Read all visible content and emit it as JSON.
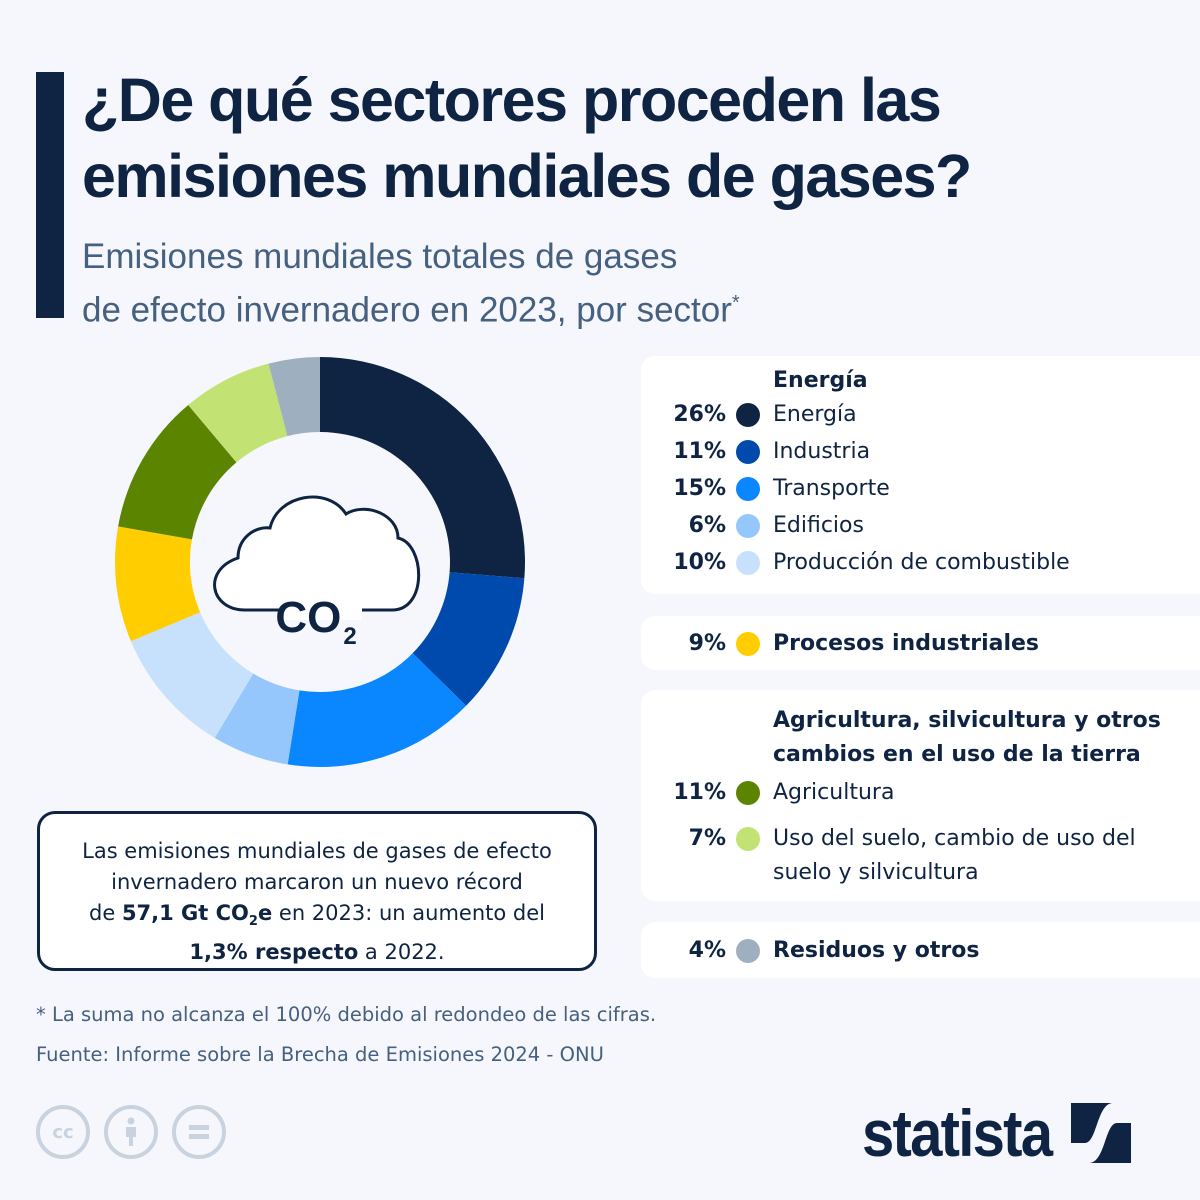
{
  "header": {
    "title_line1": "¿De qué sectores proceden las",
    "title_line2": "emisiones mundiales de gases?",
    "subtitle_line1": "Emisiones mundiales totales de gases",
    "subtitle_line2": "de efecto invernadero en 2023, por sector",
    "subtitle_mark": "*"
  },
  "center_icon": {
    "name": "cloud-co2-icon",
    "text": "CO",
    "sub": "2"
  },
  "legend": {
    "groups": [
      {
        "heading": "Energía",
        "items": [
          {
            "pct": "26%",
            "label": "Energía",
            "color": "#0f2342"
          },
          {
            "pct": "11%",
            "label": "Industria",
            "color": "#004aad"
          },
          {
            "pct": "15%",
            "label": "Transporte",
            "color": "#0a86fe"
          },
          {
            "pct": "6%",
            "label": "Edificios",
            "color": "#95c7fd"
          },
          {
            "pct": "10%",
            "label": "Producción de combustible",
            "color": "#c7e1fc"
          }
        ]
      },
      {
        "heading": "",
        "items": [
          {
            "pct": "9%",
            "label": "Procesos industriales",
            "color": "#ffcd00"
          }
        ]
      },
      {
        "heading_line1": "Agricultura, silvicultura y otros",
        "heading_line2": "cambios en el uso de la tierra",
        "items": [
          {
            "pct": "11%",
            "label": "Agricultura",
            "color": "#5b8500"
          },
          {
            "pct": "7%",
            "label_line1": "Uso del suelo, cambio de uso del",
            "label_line2": "suelo y silvicultura",
            "color": "#c2e274"
          }
        ]
      },
      {
        "heading": "",
        "items": [
          {
            "pct": "4%",
            "label": "Residuos y otros",
            "color": "#9eb0bf"
          }
        ]
      }
    ]
  },
  "callout": {
    "line1": "Las emisiones mundiales de gases de efecto",
    "line2": "invernadero marcaron un nuevo récord",
    "line3_pre": "de ",
    "line3_bold": "57,1 Gt CO",
    "line3_bold_sub": "2",
    "line3_bold_post": "e",
    "line3_post": " en 2023: un aumento del",
    "line4_bold": "1,3% respecto",
    "line4_post": " a 2022."
  },
  "footer": {
    "note": "* La suma no alcanza el 100% debido al redondeo de las cifras.",
    "source": "Fuente: Informe sobre la Brecha de Emisiones 2024 - ONU",
    "license_icons": [
      "cc-icon",
      "attribution-icon",
      "no-derivatives-icon"
    ],
    "brand": "statista"
  },
  "chart_data": {
    "type": "pie",
    "title": "¿De qué sectores proceden las emisiones mundiales de gases?",
    "subtitle": "Emisiones mundiales totales de gases de efecto invernadero en 2023, por sector*",
    "donut": true,
    "start": "top, clockwise",
    "categories": [
      "Energía",
      "Industria",
      "Transporte",
      "Edificios",
      "Producción de combustible",
      "Procesos industriales",
      "Agricultura",
      "Uso del suelo, cambio de uso del suelo y silvicultura",
      "Residuos y otros"
    ],
    "values": [
      26,
      11,
      15,
      6,
      10,
      9,
      11,
      7,
      4
    ],
    "colors": [
      "#0f2342",
      "#004aad",
      "#0a86fe",
      "#95c7fd",
      "#c7e1fc",
      "#ffcd00",
      "#5b8500",
      "#c2e274",
      "#9eb0bf"
    ],
    "unit": "%"
  }
}
